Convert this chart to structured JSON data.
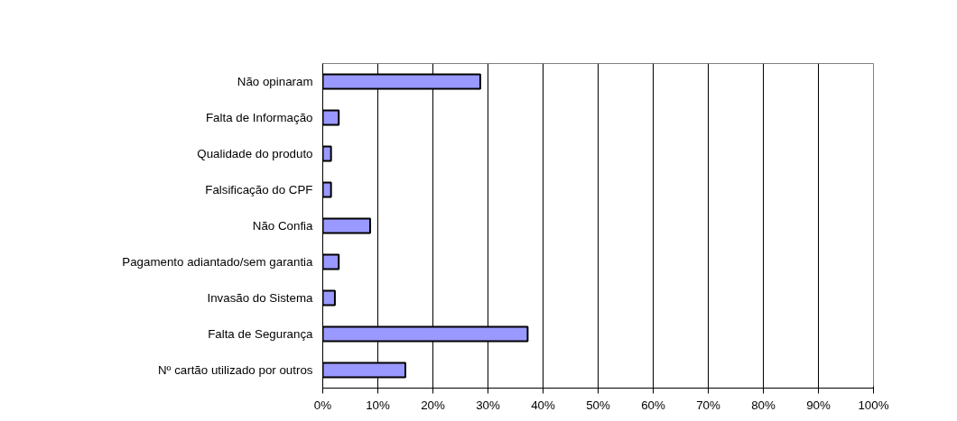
{
  "chart_data": {
    "type": "bar",
    "orientation": "horizontal",
    "categories": [
      "Não opinaram",
      "Falta de Informação",
      "Qualidade do produto",
      "Falsificação do CPF",
      "Não Confia",
      "Pagamento adiantado/sem garantia",
      "Invasão do Sistema",
      "Falta de Segurança",
      "Nº cartão utilizado por outros"
    ],
    "values": [
      28.6,
      2.9,
      1.5,
      1.5,
      8.6,
      2.9,
      2.2,
      37.2,
      15.0
    ],
    "color": "#9999ff",
    "xlim": [
      0,
      100
    ],
    "xticks": [
      {
        "value": 0,
        "label": "0%"
      },
      {
        "value": 10,
        "label": "10%"
      },
      {
        "value": 20,
        "label": "20%"
      },
      {
        "value": 30,
        "label": "30%"
      },
      {
        "value": 40,
        "label": "40%"
      },
      {
        "value": 50,
        "label": "50%"
      },
      {
        "value": 60,
        "label": "60%"
      },
      {
        "value": 70,
        "label": "70%"
      },
      {
        "value": 80,
        "label": "80%"
      },
      {
        "value": 90,
        "label": "90%"
      },
      {
        "value": 100,
        "label": "100%"
      }
    ],
    "grid": "x"
  }
}
